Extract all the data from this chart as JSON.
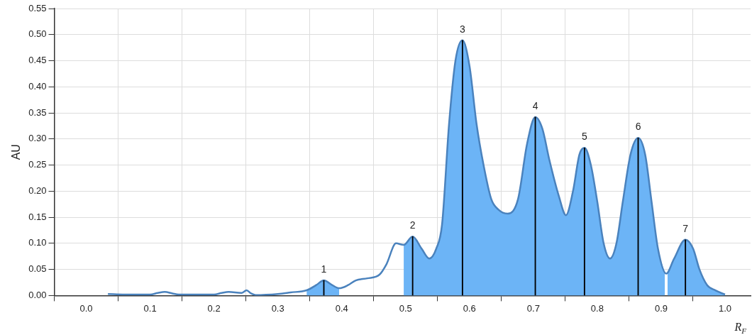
{
  "chart_data": {
    "type": "line",
    "ylabel": "AU",
    "xlabel": "R$_{F}$",
    "xlim": [
      -0.05,
      1.04
    ],
    "xticks": [
      {
        "value": 0,
        "label": "0.0"
      },
      0.1,
      0.2,
      0.3,
      0.4,
      0.5,
      0.6,
      0.7,
      0.8,
      0.9,
      {
        "value": 1,
        "label": "1.0"
      }
    ],
    "ylim": [
      0,
      0.55
    ],
    "yticks": [
      {
        "value": 0,
        "label": "0.00"
      },
      {
        "value": 0.05,
        "label": "0.05"
      },
      {
        "value": 0.1,
        "label": "0.10"
      },
      {
        "value": 0.15,
        "label": "0.15"
      },
      {
        "value": 0.2,
        "label": "0.20"
      },
      {
        "value": 0.25,
        "label": "0.25"
      },
      {
        "value": 0.3,
        "label": "0.30"
      },
      {
        "value": 0.35,
        "label": "0.35"
      },
      {
        "value": 0.4,
        "label": "0.40"
      },
      {
        "value": 0.45,
        "label": "0.45"
      },
      {
        "value": 0.5,
        "label": "0.50"
      },
      {
        "value": 0.55,
        "label": "0.55"
      }
    ],
    "grid": true,
    "series": [
      {
        "type": "area",
        "color": "#6cb4f6",
        "x": [
          0.345,
          0.36,
          0.372,
          0.385,
          0.396
        ],
        "values": [
          0.01,
          0.02,
          0.029,
          0.02,
          0.014
        ]
      },
      {
        "type": "area",
        "color": "#6cb4f6",
        "x": [
          0.497,
          0.511,
          0.525,
          0.537,
          0.548,
          0.557,
          0.568,
          0.578,
          0.589,
          0.6,
          0.611,
          0.622,
          0.634,
          0.645,
          0.66,
          0.676,
          0.69,
          0.703,
          0.714,
          0.725,
          0.74,
          0.751,
          0.762,
          0.772,
          0.78,
          0.79,
          0.8,
          0.81,
          0.82,
          0.83,
          0.84,
          0.852,
          0.864,
          0.875,
          0.885,
          0.895,
          0.906
        ],
        "values": [
          0.097,
          0.113,
          0.09,
          0.071,
          0.09,
          0.136,
          0.329,
          0.45,
          0.489,
          0.44,
          0.329,
          0.25,
          0.185,
          0.165,
          0.157,
          0.185,
          0.29,
          0.342,
          0.32,
          0.26,
          0.19,
          0.154,
          0.2,
          0.27,
          0.283,
          0.25,
          0.18,
          0.1,
          0.071,
          0.1,
          0.18,
          0.27,
          0.302,
          0.27,
          0.18,
          0.09,
          0.043
        ]
      },
      {
        "type": "area",
        "color": "#6cb4f6",
        "x": [
          0.91,
          0.92,
          0.938,
          0.95,
          0.96,
          0.972,
          0.985,
          1.0
        ],
        "values": [
          0.043,
          0.07,
          0.107,
          0.09,
          0.05,
          0.02,
          0.01,
          0.002
        ]
      },
      {
        "type": "line",
        "color": "#4a82bd",
        "x": [
          0.034,
          0.06,
          0.1,
          0.112,
          0.123,
          0.135,
          0.145,
          0.2,
          0.212,
          0.223,
          0.243,
          0.251,
          0.258,
          0.265,
          0.3,
          0.32,
          0.345,
          0.36,
          0.372,
          0.385,
          0.396,
          0.41,
          0.422,
          0.44,
          0.459,
          0.47,
          0.485,
          0.497,
          0.511,
          0.525,
          0.537,
          0.548,
          0.557,
          0.568,
          0.578,
          0.589,
          0.6,
          0.611,
          0.622,
          0.634,
          0.645,
          0.66,
          0.676,
          0.69,
          0.703,
          0.714,
          0.725,
          0.74,
          0.751,
          0.762,
          0.772,
          0.78,
          0.79,
          0.8,
          0.81,
          0.82,
          0.83,
          0.84,
          0.852,
          0.864,
          0.875,
          0.885,
          0.895,
          0.908,
          0.92,
          0.938,
          0.95,
          0.96,
          0.972,
          0.985,
          1.0
        ],
        "values": [
          0.003,
          0.002,
          0.002,
          0.005,
          0.007,
          0.004,
          0.002,
          0.002,
          0.005,
          0.007,
          0.005,
          0.01,
          0.004,
          0.001,
          0.003,
          0.006,
          0.01,
          0.02,
          0.029,
          0.02,
          0.014,
          0.02,
          0.029,
          0.033,
          0.04,
          0.06,
          0.1,
          0.097,
          0.113,
          0.09,
          0.071,
          0.09,
          0.136,
          0.329,
          0.45,
          0.489,
          0.44,
          0.329,
          0.25,
          0.185,
          0.165,
          0.157,
          0.185,
          0.29,
          0.342,
          0.32,
          0.26,
          0.19,
          0.154,
          0.2,
          0.27,
          0.283,
          0.25,
          0.18,
          0.1,
          0.071,
          0.1,
          0.18,
          0.27,
          0.302,
          0.27,
          0.18,
          0.09,
          0.042,
          0.07,
          0.107,
          0.09,
          0.05,
          0.02,
          0.01,
          0.002
        ]
      },
      {
        "type": "bar",
        "color": "#000000",
        "x": [
          0.372,
          0.511,
          0.589,
          0.703,
          0.78,
          0.864,
          0.938
        ],
        "values": [
          0.029,
          0.113,
          0.489,
          0.342,
          0.283,
          0.302,
          0.107
        ]
      }
    ],
    "annotations": [
      {
        "text": "1",
        "x": 0.372,
        "y": 0.029
      },
      {
        "text": "2",
        "x": 0.511,
        "y": 0.113
      },
      {
        "text": "3",
        "x": 0.589,
        "y": 0.489
      },
      {
        "text": "4",
        "x": 0.703,
        "y": 0.342
      },
      {
        "text": "5",
        "x": 0.78,
        "y": 0.283
      },
      {
        "text": "6",
        "x": 0.864,
        "y": 0.302
      },
      {
        "text": "7",
        "x": 0.938,
        "y": 0.107
      }
    ]
  }
}
